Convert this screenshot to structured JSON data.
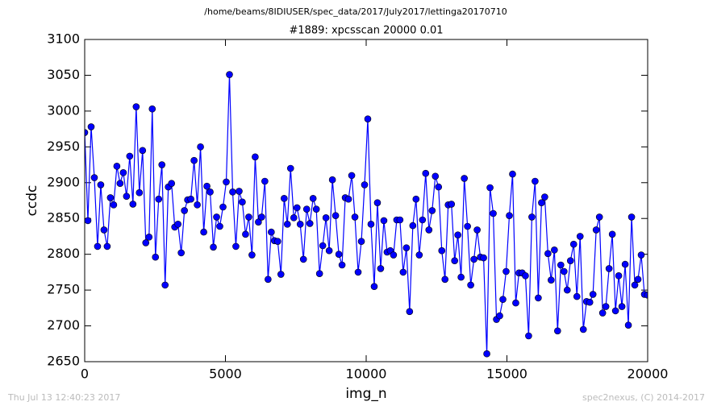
{
  "chart_data": {
    "type": "line",
    "suptitle": "/home/beams/8IDIUSER/spec_data/2017/July2017/lettinga20170710",
    "title": "#1889: xpcsscan 20000 0.01",
    "xlabel": "img_n",
    "ylabel": "ccdc",
    "footer_left": "Thu Jul 13 12:40:23 2017",
    "footer_right": "spec2nexus, (C) 2014-2017",
    "xlim": [
      0,
      20000
    ],
    "xticks": [
      0,
      5000,
      10000,
      15000,
      20000
    ],
    "ylim": [
      2650,
      3100
    ],
    "yticks": [
      2650,
      2700,
      2750,
      2800,
      2850,
      2900,
      2950,
      3000,
      3050,
      3100
    ],
    "grid": false,
    "x": [
      0,
      114,
      229,
      343,
      457,
      571,
      686,
      800,
      914,
      1029,
      1143,
      1257,
      1371,
      1486,
      1600,
      1714,
      1829,
      1943,
      2057,
      2171,
      2286,
      2400,
      2514,
      2629,
      2743,
      2857,
      2971,
      3086,
      3200,
      3314,
      3429,
      3543,
      3657,
      3771,
      3886,
      4000,
      4114,
      4229,
      4343,
      4457,
      4571,
      4686,
      4800,
      4914,
      5029,
      5143,
      5257,
      5371,
      5486,
      5600,
      5714,
      5829,
      5943,
      6057,
      6171,
      6286,
      6400,
      6514,
      6629,
      6743,
      6857,
      6971,
      7086,
      7200,
      7314,
      7429,
      7543,
      7657,
      7771,
      7886,
      8000,
      8114,
      8229,
      8343,
      8457,
      8571,
      8686,
      8800,
      8914,
      9029,
      9143,
      9257,
      9371,
      9486,
      9600,
      9714,
      9829,
      9943,
      10057,
      10171,
      10286,
      10400,
      10514,
      10629,
      10743,
      10857,
      10971,
      11086,
      11200,
      11314,
      11429,
      11543,
      11657,
      11771,
      11886,
      12000,
      12114,
      12229,
      12343,
      12457,
      12571,
      12686,
      12800,
      12914,
      13029,
      13143,
      13257,
      13371,
      13486,
      13600,
      13714,
      13829,
      13943,
      14057,
      14171,
      14286,
      14400,
      14514,
      14629,
      14743,
      14857,
      14971,
      15086,
      15200,
      15314,
      15429,
      15543,
      15657,
      15771,
      15886,
      16000,
      16114,
      16229,
      16343,
      16457,
      16571,
      16686,
      16800,
      16914,
      17029,
      17143,
      17257,
      17371,
      17486,
      17600,
      17714,
      17829,
      17943,
      18057,
      18171,
      18286,
      18400,
      18514,
      18629,
      18743,
      18857,
      18971,
      19086,
      19200,
      19314,
      19429,
      19543,
      19657,
      19771,
      19886,
      20000
    ],
    "series": [
      {
        "color": "#0000ff",
        "values": [
          2970,
          2847,
          2978,
          2907,
          2811,
          2897,
          2834,
          2811,
          2879,
          2869,
          2923,
          2899,
          2914,
          2881,
          2937,
          2870,
          3006,
          2886,
          2945,
          2816,
          2824,
          3003,
          2796,
          2877,
          2925,
          2757,
          2894,
          2899,
          2838,
          2842,
          2802,
          2861,
          2876,
          2877,
          2931,
          2869,
          2950,
          2831,
          2895,
          2887,
          2810,
          2852,
          2839,
          2866,
          2901,
          3051,
          2887,
          2811,
          2888,
          2873,
          2828,
          2852,
          2799,
          2936,
          2845,
          2852,
          2902,
          2765,
          2831,
          2819,
          2818,
          2772,
          2878,
          2842,
          2920,
          2851,
          2865,
          2842,
          2793,
          2863,
          2843,
          2878,
          2863,
          2773,
          2812,
          2851,
          2805,
          2904,
          2854,
          2800,
          2785,
          2879,
          2877,
          2910,
          2852,
          2775,
          2818,
          2897,
          2989,
          2842,
          2755,
          2872,
          2780,
          2847,
          2803,
          2805,
          2799,
          2848,
          2848,
          2775,
          2809,
          2720,
          2840,
          2877,
          2799,
          2848,
          2913,
          2834,
          2861,
          2909,
          2894,
          2805,
          2765,
          2869,
          2870,
          2791,
          2827,
          2768,
          2906,
          2839,
          2757,
          2793,
          2834,
          2796,
          2795,
          2661,
          2893,
          2857,
          2709,
          2714,
          2737,
          2776,
          2854,
          2912,
          2732,
          2774,
          2774,
          2770,
          2686,
          2852,
          2902,
          2739,
          2872,
          2880,
          2801,
          2764,
          2806,
          2693,
          2785,
          2776,
          2750,
          2791,
          2814,
          2741,
          2825,
          2695,
          2734,
          2733,
          2744,
          2834,
          2852,
          2718,
          2727,
          2780,
          2828,
          2721,
          2770,
          2727,
          2786,
          2701,
          2852,
          2757,
          2765,
          2799,
          2744,
          2743
        ]
      }
    ]
  }
}
